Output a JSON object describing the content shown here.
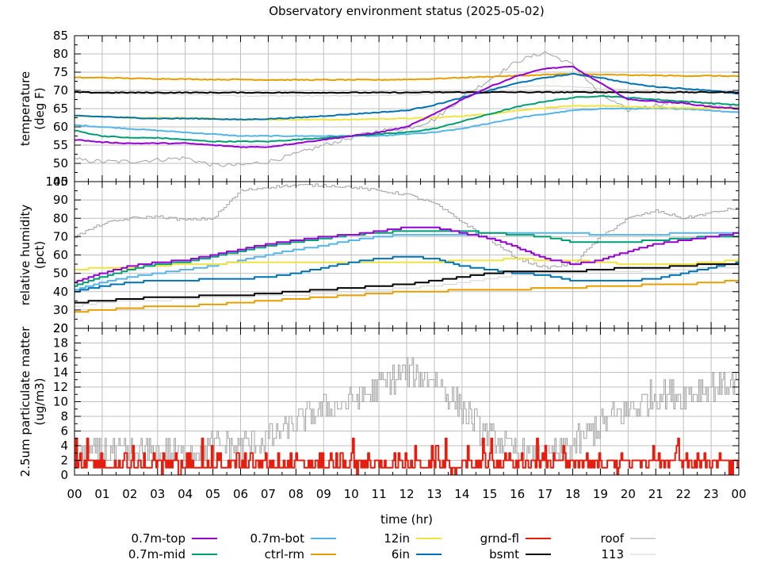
{
  "chart_data": [
    {
      "type": "line",
      "panel": "temperature",
      "title": "Observatory environment status (2025-05-02)",
      "ylabel_lines": [
        "temperature",
        "(deg F)"
      ],
      "xlabel": "time (hr)",
      "ylim": [
        45,
        85
      ],
      "yticks": [
        45,
        50,
        55,
        60,
        65,
        70,
        75,
        80,
        85
      ],
      "ytick_labels": [
        "45",
        "50",
        "55",
        "60",
        "65",
        "70",
        "75",
        "80",
        "85"
      ],
      "grid": true,
      "x": [
        0,
        1,
        2,
        3,
        4,
        5,
        6,
        7,
        8,
        9,
        10,
        11,
        12,
        13,
        14,
        15,
        16,
        17,
        18,
        19,
        20,
        21,
        22,
        23,
        24
      ],
      "series": [
        {
          "name": "0.7m-top",
          "values": [
            56.5,
            55.8,
            55.5,
            55.5,
            55.5,
            55,
            54.5,
            54.5,
            55.5,
            56.5,
            57.5,
            58.5,
            60,
            63.5,
            67.5,
            71,
            74,
            76,
            76.5,
            72,
            67.5,
            67,
            66.5,
            65.5,
            65
          ]
        },
        {
          "name": "0.7m-mid",
          "values": [
            59,
            57.5,
            57,
            57,
            56.5,
            56,
            56,
            56,
            56.5,
            57,
            57.5,
            58,
            58.5,
            59.5,
            61.5,
            63.5,
            65.5,
            67,
            68,
            68.5,
            68,
            67.5,
            67,
            66.5,
            66
          ]
        },
        {
          "name": "0.7m-bot",
          "values": [
            60.5,
            60,
            59.5,
            59,
            58.5,
            58,
            57.5,
            57.5,
            57.5,
            57.5,
            57.5,
            57.5,
            58,
            58.5,
            59.5,
            61,
            62.5,
            63.5,
            64.5,
            65,
            65,
            65,
            65,
            64.5,
            64
          ]
        },
        {
          "name": "ctrl-rm",
          "values": [
            73.5,
            73.5,
            73.3,
            73.2,
            73.1,
            73,
            73,
            72.9,
            72.9,
            72.9,
            72.9,
            72.9,
            73,
            73.2,
            73.5,
            73.8,
            74,
            74.3,
            74.5,
            74.3,
            74.2,
            74.1,
            74,
            74,
            73.9
          ]
        },
        {
          "name": "12in",
          "values": [
            63,
            62.8,
            62.5,
            62.5,
            62.5,
            62.3,
            62,
            62,
            62,
            62,
            62,
            62.2,
            62.3,
            62.5,
            63,
            63.5,
            64.5,
            65.2,
            65.7,
            65.8,
            65.5,
            65.3,
            65.2,
            65.1,
            65
          ]
        },
        {
          "name": "6in",
          "values": [
            63,
            62.8,
            62.5,
            62.3,
            62.3,
            62.2,
            62,
            62.2,
            62.5,
            63,
            63.5,
            64,
            64.5,
            66,
            68,
            70,
            72,
            73.5,
            74.5,
            73.5,
            72,
            71,
            70.5,
            70,
            69
          ]
        },
        {
          "name": "grnd-fl",
          "values": []
        },
        {
          "name": "bsmt",
          "values": [
            69.5,
            69.4,
            69.4,
            69.4,
            69.4,
            69.4,
            69.4,
            69.4,
            69.4,
            69.4,
            69.4,
            69.4,
            69.4,
            69.5,
            69.5,
            69.5,
            69.5,
            69.5,
            69.5,
            69.5,
            69.5,
            69.5,
            69.5,
            69.5,
            69.5
          ]
        },
        {
          "name": "roof",
          "values": [
            51,
            50.5,
            50.5,
            51,
            51.5,
            49.5,
            49.5,
            50.5,
            52.5,
            55,
            57,
            59,
            59.5,
            62,
            68,
            73,
            78,
            80.5,
            77,
            69,
            64.5,
            66,
            67,
            66,
            65
          ]
        },
        {
          "name": "113",
          "values": [
            69.5,
            69,
            69,
            69,
            68.8,
            68.8,
            68.5,
            68.5,
            68.5,
            68.5,
            68.5,
            68.7,
            68.7,
            69,
            69.5,
            70.5,
            71,
            71.3,
            71,
            70.5,
            70.2,
            70,
            70,
            70,
            70
          ]
        }
      ]
    },
    {
      "type": "line",
      "panel": "relative humidity",
      "ylabel_lines": [
        "relative humidity",
        "(pct)"
      ],
      "ylim": [
        20,
        100
      ],
      "yticks": [
        20,
        30,
        40,
        50,
        60,
        70,
        80,
        90,
        100
      ],
      "ytick_labels": [
        "20",
        "30",
        "40",
        "50",
        "60",
        "70",
        "80",
        "90",
        "100"
      ],
      "grid": true,
      "x": [
        0,
        1,
        2,
        3,
        4,
        5,
        6,
        7,
        8,
        9,
        10,
        11,
        12,
        13,
        14,
        15,
        16,
        17,
        18,
        19,
        20,
        21,
        22,
        23,
        24
      ],
      "series": [
        {
          "name": "0.7m-top",
          "values": [
            45,
            50,
            54,
            56,
            57,
            60,
            63,
            66,
            68,
            70,
            71,
            73,
            75,
            75,
            72,
            69,
            64,
            58,
            55,
            57,
            62,
            66,
            68,
            70,
            72
          ]
        },
        {
          "name": "0.7m-mid",
          "values": [
            43,
            48,
            52,
            55,
            56,
            59,
            62,
            65,
            67,
            69,
            71,
            72,
            73,
            73,
            73,
            72,
            71,
            70,
            67,
            67,
            67,
            68,
            69,
            70,
            70
          ]
        },
        {
          "name": "0.7m-bot",
          "values": [
            41,
            45,
            48,
            50,
            52,
            54,
            57,
            60,
            63,
            65,
            68,
            70,
            71,
            71,
            71,
            72,
            72,
            72,
            72,
            71,
            71,
            71,
            72,
            72,
            72
          ]
        },
        {
          "name": "ctrl-rm",
          "values": [
            29,
            30,
            31,
            32,
            32,
            33,
            34,
            35,
            36,
            37,
            38,
            39,
            40,
            40,
            41,
            41,
            41,
            42,
            42,
            43,
            43,
            44,
            44,
            45,
            46
          ]
        },
        {
          "name": "12in",
          "values": [
            52,
            53,
            53,
            54,
            55,
            55,
            56,
            56,
            56,
            56,
            56,
            56,
            56,
            56,
            57,
            57,
            58,
            57,
            57,
            56,
            55,
            55,
            55,
            56,
            57
          ]
        },
        {
          "name": "6in",
          "values": [
            40,
            43,
            45,
            46,
            46,
            47,
            47,
            48,
            50,
            53,
            56,
            58,
            59,
            58,
            54,
            52,
            50,
            49,
            46,
            46,
            46,
            47,
            50,
            53,
            56
          ]
        },
        {
          "name": "grnd-fl",
          "values": []
        },
        {
          "name": "bsmt",
          "values": [
            34,
            35,
            36,
            37,
            37,
            38,
            38,
            39,
            40,
            41,
            42,
            43,
            44,
            46,
            48,
            50,
            51,
            51,
            51,
            52,
            53,
            53,
            54,
            55,
            55
          ]
        },
        {
          "name": "roof",
          "values": [
            70,
            77,
            80,
            81,
            79,
            80,
            95,
            97,
            98,
            98,
            97,
            95,
            93,
            88,
            78,
            68,
            58,
            53,
            55,
            70,
            80,
            84,
            80,
            83,
            86
          ]
        },
        {
          "name": "113",
          "values": [
            32,
            34,
            35,
            35,
            36,
            37,
            37,
            38,
            38,
            39,
            40,
            41,
            42,
            43,
            45,
            47,
            49,
            50,
            50,
            51,
            51,
            52,
            52,
            53,
            53
          ]
        }
      ]
    },
    {
      "type": "line",
      "panel": "particulate matter",
      "ylabel_lines": [
        "2.5um particulate matter",
        "(ug/m3)"
      ],
      "ylim": [
        0,
        20
      ],
      "yticks": [
        0,
        2,
        4,
        6,
        8,
        10,
        12,
        14,
        16,
        18,
        20
      ],
      "ytick_labels": [
        "0",
        "2",
        "4",
        "6",
        "8",
        "10",
        "12",
        "14",
        "16",
        "18",
        "20"
      ],
      "grid": true,
      "x": [
        0,
        1,
        2,
        3,
        4,
        5,
        6,
        7,
        8,
        9,
        10,
        11,
        12,
        13,
        14,
        15,
        16,
        17,
        18,
        19,
        20,
        21,
        22,
        23,
        24
      ],
      "series": [
        {
          "name": "grnd-fl",
          "values": [
            1.5,
            1.8,
            1.7,
            1.6,
            1.7,
            1.5,
            1.6,
            1.8,
            1.7,
            1.8,
            1.8,
            1.8,
            1.8,
            2,
            1.8,
            2,
            1.8,
            2,
            2,
            2.2,
            2,
            2.3,
            2.2,
            2.5,
            2.6
          ]
        },
        {
          "name": "roof",
          "values": [
            2,
            3,
            3,
            3,
            3,
            4,
            4,
            5,
            7,
            9,
            10,
            12,
            14,
            13,
            9,
            5,
            3,
            2,
            4,
            7,
            9,
            11,
            11,
            12,
            13
          ]
        },
        {
          "name": "113",
          "values": []
        }
      ]
    }
  ],
  "x_axis": {
    "label": "time (hr)",
    "tick_labels": [
      "00",
      "01",
      "02",
      "03",
      "04",
      "05",
      "06",
      "07",
      "08",
      "09",
      "10",
      "11",
      "12",
      "13",
      "14",
      "15",
      "16",
      "17",
      "18",
      "19",
      "20",
      "21",
      "22",
      "23",
      "00"
    ]
  },
  "legend": {
    "placement": "bottom",
    "entries": [
      {
        "name": "0.7m-top",
        "color": "#9400d3"
      },
      {
        "name": "0.7m-mid",
        "color": "#009e73"
      },
      {
        "name": "0.7m-bot",
        "color": "#56b4e9"
      },
      {
        "name": "ctrl-rm",
        "color": "#e69f00"
      },
      {
        "name": "12in",
        "color": "#f0e442"
      },
      {
        "name": "6in",
        "color": "#0072b2"
      },
      {
        "name": "grnd-fl",
        "color": "#e51e10"
      },
      {
        "name": "bsmt",
        "color": "#000000"
      },
      {
        "name": "roof",
        "color": "#a0a0a0"
      },
      {
        "name": "113",
        "color": "#d3d3d3"
      }
    ]
  }
}
